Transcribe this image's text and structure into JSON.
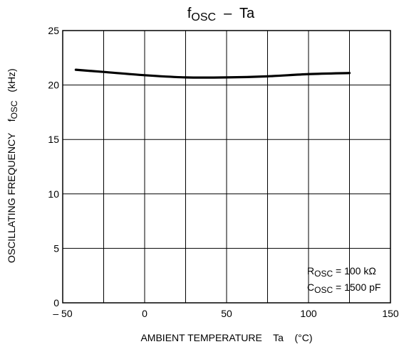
{
  "chart_data": {
    "type": "line",
    "title": {
      "main": "f",
      "sub": "OSC",
      "rest": "  –  Ta"
    },
    "xlabel": "AMBIENT TEMPERATURE    Ta    (°C)",
    "ylabel": {
      "main": "OSCILLATING FREQUENCY    f",
      "sub": "OSC",
      "rest": "   (kHz)"
    },
    "xlim": [
      -50,
      150
    ],
    "ylim": [
      0,
      25
    ],
    "x_ticks": [
      -50,
      0,
      50,
      100,
      150
    ],
    "x_tick_labels": [
      "– 50",
      "0",
      "50",
      "100",
      "150"
    ],
    "y_ticks": [
      0,
      5,
      10,
      15,
      20,
      25
    ],
    "y_tick_labels": [
      "0",
      "5",
      "10",
      "15",
      "20",
      "25"
    ],
    "x_grid": [
      -50,
      -25,
      0,
      25,
      50,
      75,
      100,
      125,
      150
    ],
    "y_grid": [
      0,
      5,
      10,
      15,
      20,
      25
    ],
    "grid": true,
    "annotations": [
      {
        "main": "R",
        "sub": "OSC",
        "rest": " = 100 kΩ"
      },
      {
        "main": "C",
        "sub": "OSC",
        "rest": " = 1500 pF"
      }
    ],
    "series": [
      {
        "color": "#000000",
        "x": [
          -42,
          -25,
          0,
          25,
          50,
          75,
          100,
          125
        ],
        "y": [
          21.4,
          21.2,
          20.9,
          20.7,
          20.7,
          20.8,
          21.0,
          21.1
        ]
      }
    ]
  }
}
